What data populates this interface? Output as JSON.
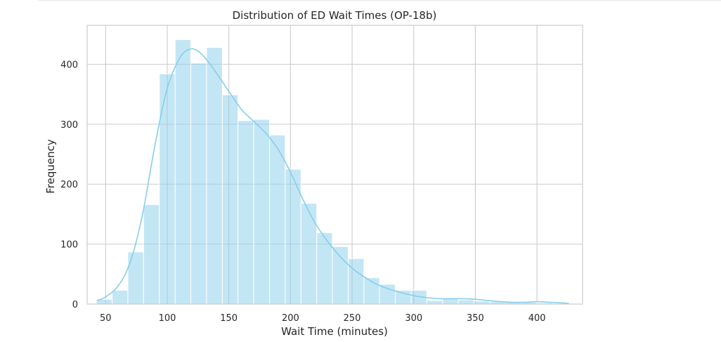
{
  "chart_data": {
    "type": "bar",
    "subtype": "histogram-with-kde",
    "title": "Distribution of ED Wait Times (OP-18b)",
    "xlabel": "Wait Time (minutes)",
    "ylabel": "Frequency",
    "xlim": [
      35,
      437
    ],
    "ylim": [
      0,
      465
    ],
    "xticks": [
      50,
      100,
      150,
      200,
      250,
      300,
      350,
      400
    ],
    "yticks": [
      0,
      100,
      200,
      300,
      400
    ],
    "grid": true,
    "legend": "none",
    "bar_color": "#87ceeb",
    "kde_color": "#87ceeb",
    "bins": [
      {
        "start": 42.5,
        "end": 55.3,
        "count": 8
      },
      {
        "start": 55.3,
        "end": 68.0,
        "count": 23
      },
      {
        "start": 68.0,
        "end": 80.8,
        "count": 87
      },
      {
        "start": 80.8,
        "end": 93.6,
        "count": 166
      },
      {
        "start": 93.6,
        "end": 106.4,
        "count": 384
      },
      {
        "start": 106.4,
        "end": 119.1,
        "count": 441
      },
      {
        "start": 119.1,
        "end": 131.9,
        "count": 402
      },
      {
        "start": 131.9,
        "end": 144.7,
        "count": 428
      },
      {
        "start": 144.7,
        "end": 157.4,
        "count": 349
      },
      {
        "start": 157.4,
        "end": 170.2,
        "count": 306
      },
      {
        "start": 170.2,
        "end": 183.0,
        "count": 308
      },
      {
        "start": 183.0,
        "end": 195.7,
        "count": 282
      },
      {
        "start": 195.7,
        "end": 208.5,
        "count": 225
      },
      {
        "start": 208.5,
        "end": 221.3,
        "count": 168
      },
      {
        "start": 221.3,
        "end": 234.0,
        "count": 119
      },
      {
        "start": 234.0,
        "end": 246.8,
        "count": 96
      },
      {
        "start": 246.8,
        "end": 259.6,
        "count": 76
      },
      {
        "start": 259.6,
        "end": 272.3,
        "count": 44
      },
      {
        "start": 272.3,
        "end": 285.1,
        "count": 33
      },
      {
        "start": 285.1,
        "end": 297.9,
        "count": 23
      },
      {
        "start": 297.9,
        "end": 310.6,
        "count": 23
      },
      {
        "start": 310.6,
        "end": 323.4,
        "count": 6
      },
      {
        "start": 323.4,
        "end": 336.2,
        "count": 9
      },
      {
        "start": 336.2,
        "end": 348.9,
        "count": 7
      },
      {
        "start": 348.9,
        "end": 361.7,
        "count": 5
      },
      {
        "start": 361.7,
        "end": 374.5,
        "count": 4
      },
      {
        "start": 374.5,
        "end": 387.2,
        "count": 3
      },
      {
        "start": 387.2,
        "end": 400.0,
        "count": 3
      },
      {
        "start": 400.0,
        "end": 412.8,
        "count": 2
      },
      {
        "start": 412.8,
        "end": 425.5,
        "count": 1
      }
    ],
    "kde_curve": {
      "x": [
        43,
        50,
        60,
        70,
        80,
        90,
        100,
        110,
        118,
        125,
        133,
        140,
        150,
        160,
        170,
        180,
        190,
        200,
        210,
        220,
        230,
        240,
        250,
        260,
        270,
        280,
        290,
        300,
        310,
        320,
        330,
        340,
        350,
        360,
        370,
        380,
        390,
        400,
        410,
        420,
        426
      ],
      "y": [
        6,
        12,
        30,
        70,
        150,
        265,
        360,
        410,
        425,
        422,
        405,
        385,
        355,
        325,
        305,
        285,
        258,
        220,
        175,
        135,
        105,
        80,
        60,
        45,
        33,
        25,
        19,
        14,
        11,
        9,
        9,
        9,
        8,
        6,
        4,
        3,
        3,
        4,
        3,
        2,
        1
      ]
    }
  }
}
